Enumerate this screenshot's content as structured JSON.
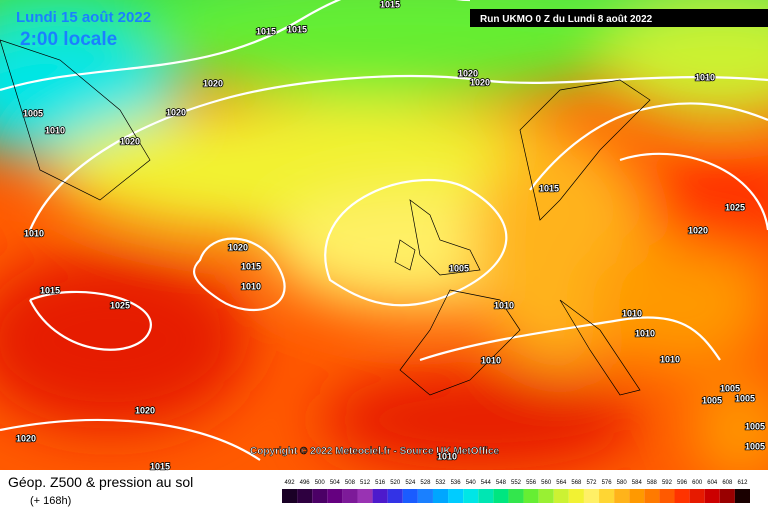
{
  "header": {
    "date": "Lundi 15 août 2022",
    "time": "2:00 locale",
    "run": "Run UKMO 0 Z du Lundi 8 août 2022"
  },
  "copyright": "Copyright © 2022 Meteociel.fr - Source UK MetOffice",
  "isobar_labels": [
    1015,
    1015,
    1015,
    1020,
    1020,
    1020,
    1010,
    1005,
    1010,
    1020,
    1020,
    1015,
    1025,
    1020,
    1010,
    1020,
    1015,
    1005,
    1010,
    1015,
    1025,
    1010,
    1010,
    1010,
    1010,
    1010,
    1005,
    1005,
    1005,
    1020,
    1005,
    1020,
    1015,
    1010,
    1005
  ],
  "legend": {
    "title": "Géop. Z500 & pression au sol",
    "lead": "(+ 168h)",
    "scale": [
      492,
      496,
      500,
      504,
      508,
      512,
      516,
      520,
      524,
      528,
      532,
      536,
      540,
      544,
      548,
      552,
      556,
      560,
      564,
      568,
      572,
      576,
      580,
      584,
      588,
      592,
      596,
      600,
      604,
      608,
      612
    ],
    "colors": [
      "#1a0026",
      "#2e0040",
      "#4b0066",
      "#650080",
      "#7d1a99",
      "#9933b3",
      "#4d1acc",
      "#3333e6",
      "#1a5cff",
      "#1a80ff",
      "#00a6ff",
      "#00ccff",
      "#00e6e6",
      "#00e6b3",
      "#00e680",
      "#33e64d",
      "#66ee33",
      "#99f033",
      "#ccf233",
      "#f2f233",
      "#fff066",
      "#ffd633",
      "#ffb31a",
      "#ff9900",
      "#ff7a00",
      "#ff5a00",
      "#ff3300",
      "#e61a00",
      "#cc0000",
      "#990000",
      "#1a0000"
    ]
  }
}
